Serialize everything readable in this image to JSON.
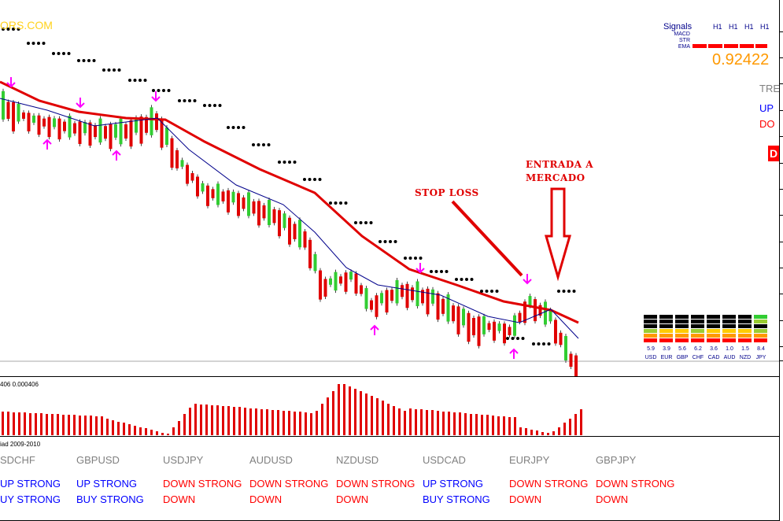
{
  "brand_text": "ORS.COM",
  "signals": {
    "title": "Signals",
    "labels": [
      "MACD",
      "STR",
      "EMA"
    ],
    "timeframes": [
      "H1",
      "H1",
      "H1",
      "H1"
    ],
    "price": "0.92422"
  },
  "trend_panel": {
    "trend": "TRE",
    "up": "UP",
    "down": "DO",
    "box": "D"
  },
  "annotations": {
    "stop_loss": "STOP LOSS",
    "entry_line1": "ENTRADA A",
    "entry_line2": "MERCADO"
  },
  "oscillator": {
    "label": "406 0.000406"
  },
  "strength_meter": {
    "currencies": [
      {
        "code": "USD",
        "value": "5.9"
      },
      {
        "code": "EUR",
        "value": "3.9"
      },
      {
        "code": "GBP",
        "value": "5.6"
      },
      {
        "code": "CHF",
        "value": "6.2"
      },
      {
        "code": "CAD",
        "value": "3.6"
      },
      {
        "code": "AUD",
        "value": "1.0"
      },
      {
        "code": "NZD",
        "value": "1.5"
      },
      {
        "code": "JPY",
        "value": "8.4"
      }
    ]
  },
  "table": {
    "title": "iad 2009-2010",
    "columns": [
      {
        "pair": "SDCHF",
        "trend": "UP STRONG",
        "signal": "UY STRONG",
        "trend_color": "#0000ff",
        "signal_color": "#0000ff"
      },
      {
        "pair": "GBPUSD",
        "trend": "UP STRONG",
        "signal": "BUY STRONG",
        "trend_color": "#0000ff",
        "signal_color": "#0000ff"
      },
      {
        "pair": "USDJPY",
        "trend": "DOWN STRONG",
        "signal": "DOWN",
        "trend_color": "#ff0000",
        "signal_color": "#ff0000"
      },
      {
        "pair": "AUDUSD",
        "trend": "DOWN STRONG",
        "signal": "DOWN",
        "trend_color": "#ff0000",
        "signal_color": "#ff0000"
      },
      {
        "pair": "NZDUSD",
        "trend": "DOWN STRONG",
        "signal": "DOWN",
        "trend_color": "#ff0000",
        "signal_color": "#ff0000"
      },
      {
        "pair": "USDCAD",
        "trend": "UP STRONG",
        "signal": "BUY STRONG",
        "trend_color": "#0000ff",
        "signal_color": "#0000ff"
      },
      {
        "pair": "EURJPY",
        "trend": "DOWN STRONG",
        "signal": "DOWN",
        "trend_color": "#ff0000",
        "signal_color": "#ff0000"
      },
      {
        "pair": "GBPJPY",
        "trend": "DOWN STRONG",
        "signal": "DOWN",
        "trend_color": "#ff0000",
        "signal_color": "#ff0000"
      }
    ]
  },
  "colors": {
    "bull": "#32cd32",
    "bear": "#e00000",
    "ema": "#e00000",
    "signal_line": "#00008b",
    "dots": "#000000",
    "arrows": "#ff00ff",
    "histogram": "#e00000"
  }
}
